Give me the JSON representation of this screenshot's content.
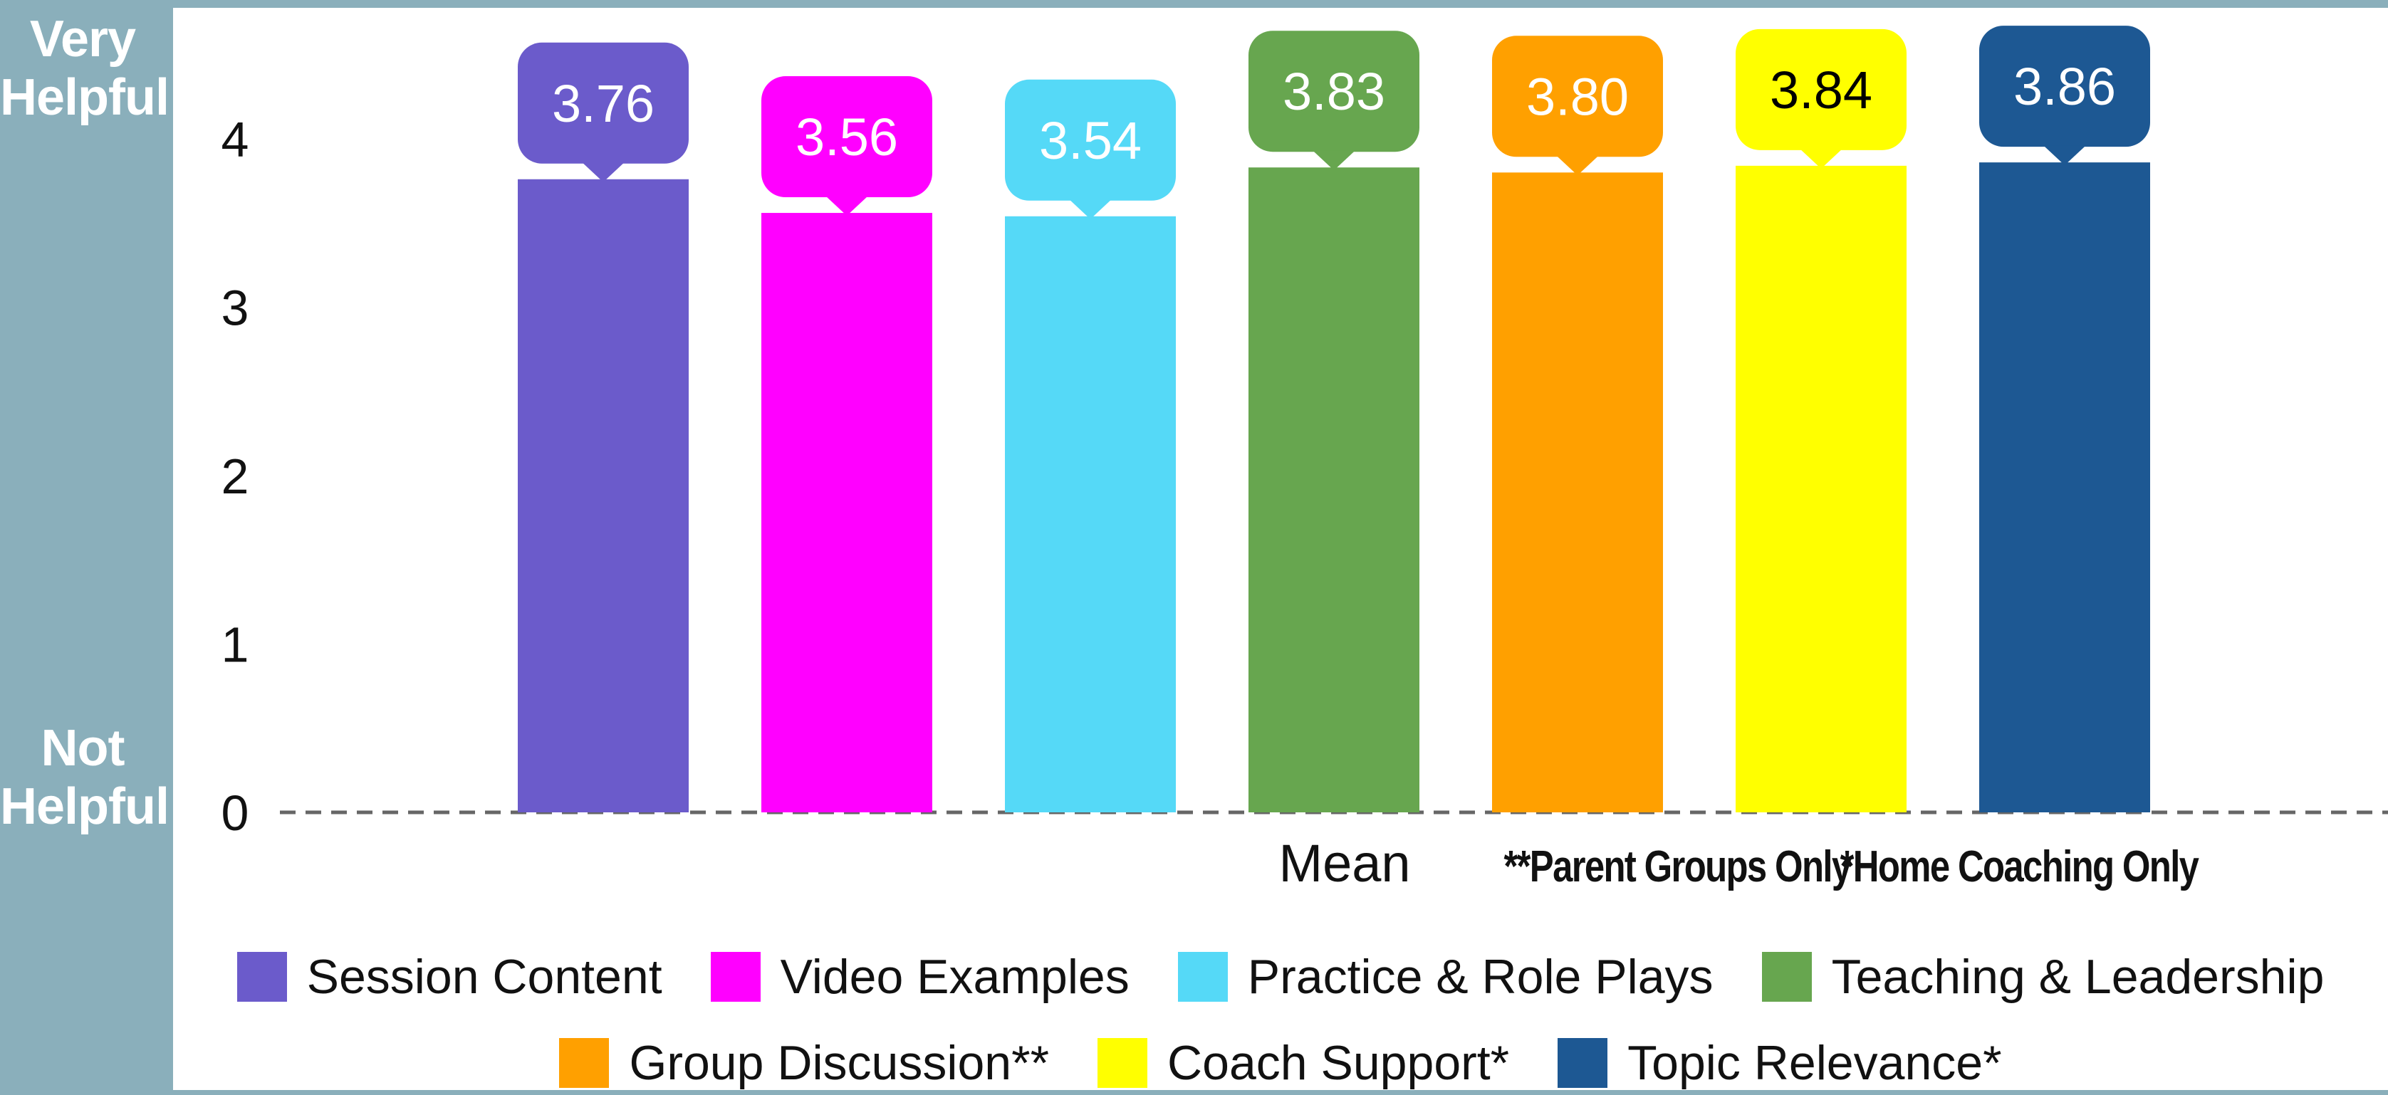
{
  "side_labels": {
    "top": "Very\nHelpful",
    "bottom": "Not\nHelpful"
  },
  "chart_data": {
    "type": "bar",
    "categories": [
      "Session Content",
      "Video Examples",
      "Practice & Role Plays",
      "Teaching & Leadership",
      "Group Discussion**",
      "Coach Support*",
      "Topic Relevance*"
    ],
    "values": [
      3.76,
      3.56,
      3.54,
      3.83,
      3.8,
      3.84,
      3.86
    ],
    "data_labels": [
      "3.76",
      "3.56",
      "3.54",
      "3.83",
      "3.80",
      "3.84",
      "3.86"
    ],
    "colors": [
      "#6b5bcb",
      "#ff00ff",
      "#55d9f7",
      "#67a64f",
      "#ffa000",
      "#ffff00",
      "#1d5893"
    ],
    "label_text_colors": [
      "#ffffff",
      "#ffffff",
      "#ffffff",
      "#ffffff",
      "#ffffff",
      "#000000",
      "#ffffff"
    ],
    "ylim": [
      0,
      4.6
    ],
    "yticks": [
      "0",
      "1",
      "2",
      "3",
      "4"
    ],
    "x_annotations": [
      "Mean",
      "**Parent Groups Only",
      "*Home Coaching Only"
    ],
    "grid": false,
    "baseline_style": "dashed",
    "legend_position": "bottom",
    "legend_rows": [
      [
        0,
        1,
        2,
        3
      ],
      [
        4,
        5,
        6
      ]
    ]
  }
}
